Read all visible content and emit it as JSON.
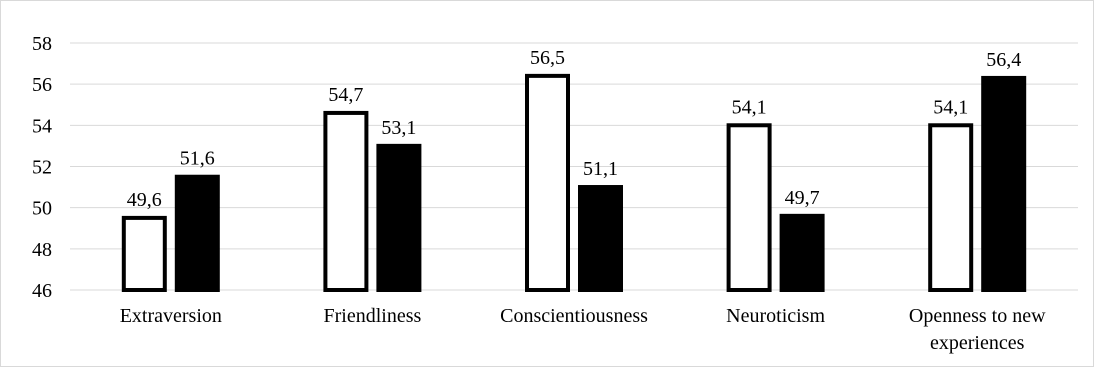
{
  "chart_data": {
    "type": "bar",
    "categories": [
      [
        "Extraversion"
      ],
      [
        "Friendliness"
      ],
      [
        "Conscientiousness"
      ],
      [
        "Neuroticism"
      ],
      [
        "Openness to new",
        "experiences"
      ]
    ],
    "series": [
      {
        "values": [
          49.6,
          54.7,
          56.5,
          54.1,
          54.1
        ],
        "fill": "#ffffff",
        "stroke": "#000000"
      },
      {
        "values": [
          51.6,
          53.1,
          51.1,
          49.7,
          56.4
        ],
        "fill": "#000000",
        "stroke": "#000000"
      }
    ],
    "data_labels": [
      [
        "49,6",
        "54,7",
        "56,5",
        "54,1",
        "54,1"
      ],
      [
        "51,6",
        "53,1",
        "51,1",
        "49,7",
        "56,4"
      ]
    ],
    "y_ticks": [
      "46",
      "48",
      "50",
      "52",
      "54",
      "56",
      "58"
    ],
    "ylim": [
      46,
      58
    ],
    "grid": true,
    "legend": "none",
    "title": "",
    "xlabel": "",
    "ylabel": ""
  }
}
